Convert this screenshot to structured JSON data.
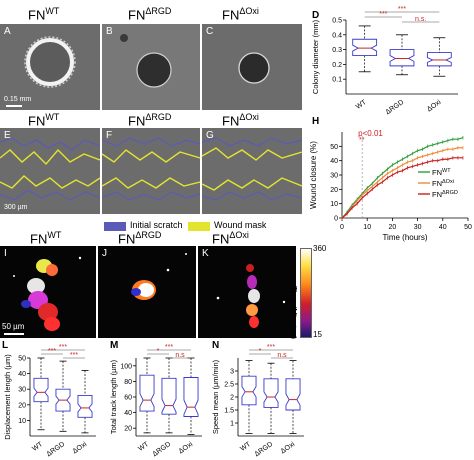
{
  "top_row": {
    "panels": [
      {
        "letter": "A",
        "title_base": "FN",
        "title_sup": "WT",
        "scalebar": "0.15 mm"
      },
      {
        "letter": "B",
        "title_base": "FN",
        "title_sup": "ΔRGD"
      },
      {
        "letter": "C",
        "title_base": "FN",
        "title_sup": "ΔOxi"
      }
    ]
  },
  "mid_row": {
    "panels": [
      {
        "letter": "E",
        "title_base": "FN",
        "title_sup": "WT",
        "scalebar": "300 µm"
      },
      {
        "letter": "F",
        "title_base": "FN",
        "title_sup": "ΔRGD"
      },
      {
        "letter": "G",
        "title_base": "FN",
        "title_sup": "ΔOxi"
      }
    ],
    "legend": [
      {
        "label": "Initial scratch",
        "color": "#5a5ab8"
      },
      {
        "label": "Wound mask",
        "color": "#e3e330"
      }
    ]
  },
  "track_row": {
    "panels": [
      {
        "letter": "I",
        "title_base": "FN",
        "title_sup": "WT",
        "scalebar": "50 µm"
      },
      {
        "letter": "J",
        "title_base": "FN",
        "title_sup": "ΔRGD"
      },
      {
        "letter": "K",
        "title_base": "FN",
        "title_sup": "ΔOxi"
      }
    ],
    "colorbar": {
      "max": "360",
      "min": "15",
      "label": "Time (Minutes)"
    }
  },
  "chart_data": [
    {
      "panel": "D",
      "type": "box",
      "ylabel": "Colony diameter (mm)",
      "categories": [
        "WT",
        "ΔRGD",
        "ΔOxi"
      ],
      "ylim": [
        0.0,
        0.5
      ],
      "yticks": [
        0.1,
        0.2,
        0.3,
        0.4,
        0.5
      ],
      "boxes": [
        {
          "min": 0.15,
          "q1": 0.26,
          "median": 0.31,
          "q3": 0.37,
          "max": 0.46
        },
        {
          "min": 0.13,
          "q1": 0.19,
          "median": 0.24,
          "q3": 0.3,
          "max": 0.4
        },
        {
          "min": 0.12,
          "q1": 0.19,
          "median": 0.23,
          "q3": 0.28,
          "max": 0.38
        }
      ],
      "annotations": [
        {
          "text": "***",
          "from": "WT",
          "to": "ΔOxi",
          "color": "#cc2222"
        },
        {
          "text": "***",
          "from": "WT",
          "to": "ΔRGD",
          "color": "#cc2222"
        },
        {
          "text": "n.s.",
          "from": "ΔRGD",
          "to": "ΔOxi",
          "color": "#cc2222"
        }
      ]
    },
    {
      "panel": "H",
      "type": "line",
      "xlabel": "Time (hours)",
      "ylabel": "Wound closure (%)",
      "xlim": [
        0,
        50
      ],
      "ylim": [
        0,
        60
      ],
      "xticks": [
        0,
        10,
        20,
        30,
        40,
        50
      ],
      "yticks": [
        0,
        10,
        20,
        30,
        40,
        50
      ],
      "annotation": {
        "text": "p<0.01",
        "marker": "**",
        "x": 8,
        "color": "#cc2222"
      },
      "x": [
        0,
        2,
        4,
        6,
        8,
        10,
        12,
        14,
        16,
        18,
        20,
        22,
        24,
        26,
        28,
        30,
        32,
        34,
        36,
        38,
        40,
        42,
        44,
        46,
        48
      ],
      "series": [
        {
          "name_base": "FN",
          "name_sup": "WT",
          "color": "#2e9e3a",
          "values": [
            0,
            4,
            9,
            13,
            17,
            21,
            24,
            28,
            31,
            34,
            37,
            39,
            41,
            43,
            45,
            47,
            48,
            50,
            51,
            52,
            53,
            54,
            55,
            55,
            56
          ]
        },
        {
          "name_base": "FN",
          "name_sup": "ΔOxi",
          "color": "#f08a3a",
          "values": [
            0,
            3,
            8,
            12,
            16,
            19,
            22,
            25,
            28,
            31,
            33,
            35,
            37,
            39,
            40,
            42,
            43,
            44,
            45,
            46,
            47,
            48,
            48,
            49,
            49
          ]
        },
        {
          "name_base": "FN",
          "name_sup": "ΔRGD",
          "color": "#c81e1e",
          "values": [
            0,
            3,
            7,
            10,
            14,
            17,
            20,
            23,
            25,
            28,
            30,
            32,
            33,
            35,
            36,
            37,
            38,
            39,
            40,
            40,
            41,
            41,
            42,
            42,
            42
          ]
        }
      ]
    },
    {
      "panel": "L",
      "type": "box",
      "ylabel": "Displacement length (µm)",
      "categories": [
        "WT",
        "ΔRGD",
        "ΔOxi"
      ],
      "ylim": [
        0,
        50
      ],
      "yticks": [
        10,
        20,
        30,
        40,
        50
      ],
      "boxes": [
        {
          "min": 4,
          "q1": 22,
          "median": 28,
          "q3": 37,
          "max": 50
        },
        {
          "min": 3,
          "q1": 16,
          "median": 23,
          "q3": 30,
          "max": 48
        },
        {
          "min": 2,
          "q1": 12,
          "median": 18,
          "q3": 26,
          "max": 42
        }
      ],
      "annotations": [
        {
          "text": "***",
          "from": "WT",
          "to": "ΔOxi",
          "color": "#cc2222"
        },
        {
          "text": "***",
          "from": "WT",
          "to": "ΔRGD",
          "color": "#cc2222"
        },
        {
          "text": "***",
          "from": "ΔRGD",
          "to": "ΔOxi",
          "color": "#cc2222"
        }
      ]
    },
    {
      "panel": "M",
      "type": "box",
      "ylabel": "Total track length (µm)",
      "categories": [
        "WT",
        "ΔRGD",
        "ΔOxi"
      ],
      "ylim": [
        10,
        110
      ],
      "yticks": [
        20,
        40,
        60,
        80,
        100
      ],
      "boxes": [
        {
          "min": 14,
          "q1": 42,
          "median": 56,
          "q3": 88,
          "max": 110
        },
        {
          "min": 14,
          "q1": 38,
          "median": 49,
          "q3": 84,
          "max": 110
        },
        {
          "min": 12,
          "q1": 35,
          "median": 47,
          "q3": 85,
          "max": 110
        }
      ],
      "annotations": [
        {
          "text": "***",
          "from": "WT",
          "to": "ΔOxi",
          "color": "#cc2222"
        },
        {
          "text": "*",
          "from": "WT",
          "to": "ΔRGD",
          "color": "#cc2222"
        },
        {
          "text": "n.s",
          "from": "ΔRGD",
          "to": "ΔOxi",
          "color": "#cc2222"
        }
      ]
    },
    {
      "panel": "N",
      "type": "box",
      "ylabel": "Speed mean (µm/min)",
      "categories": [
        "WT",
        "ΔRGD",
        "ΔOxi"
      ],
      "ylim": [
        0.5,
        3.5
      ],
      "yticks": [
        1.0,
        1.5,
        2.0,
        2.5,
        3.0
      ],
      "boxes": [
        {
          "min": 0.6,
          "q1": 1.7,
          "median": 2.2,
          "q3": 2.8,
          "max": 3.4
        },
        {
          "min": 0.6,
          "q1": 1.6,
          "median": 2.0,
          "q3": 2.7,
          "max": 3.3
        },
        {
          "min": 0.6,
          "q1": 1.5,
          "median": 1.9,
          "q3": 2.7,
          "max": 3.4
        }
      ],
      "annotations": [
        {
          "text": "***",
          "from": "WT",
          "to": "ΔOxi",
          "color": "#cc2222"
        },
        {
          "text": "*",
          "from": "WT",
          "to": "ΔRGD",
          "color": "#cc2222"
        },
        {
          "text": "n.s",
          "from": "ΔRGD",
          "to": "ΔOxi",
          "color": "#cc2222"
        }
      ]
    }
  ]
}
